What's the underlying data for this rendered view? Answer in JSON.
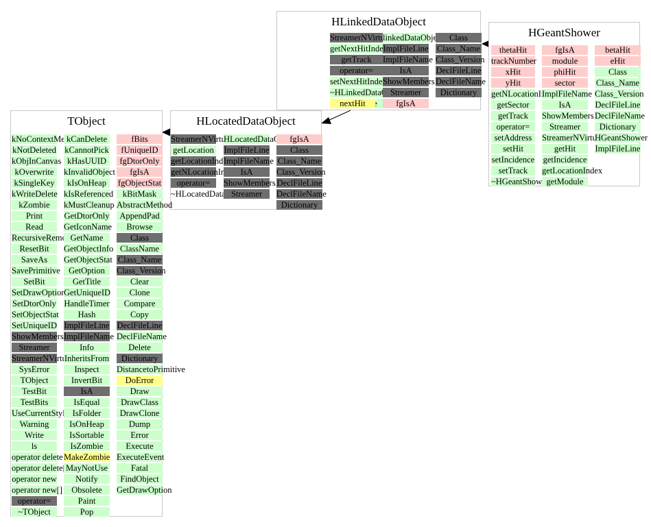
{
  "classes": {
    "hlinked": {
      "title": "HLinkedDataObject",
      "columns": [
        [
          {
            "t": "StreamerNVirtual",
            "c": "gray"
          },
          {
            "t": "getNextHitIndex",
            "c": "green"
          },
          {
            "t": "getTrack",
            "c": "gray"
          },
          {
            "t": "operator=",
            "c": "gray"
          },
          {
            "t": "setNextHitIndex",
            "c": "green"
          },
          {
            "t": "~HLinkedDataObject",
            "c": "green"
          },
          {
            "t": "sortVariable",
            "c": "green"
          }
        ],
        [
          {
            "t": "linkedDataObject",
            "c": "green"
          },
          {
            "t": "ImplFileLine",
            "c": "gray"
          },
          {
            "t": "ImplFileName",
            "c": "gray"
          },
          {
            "t": "IsA",
            "c": "gray"
          },
          {
            "t": "ShowMembers",
            "c": "gray"
          },
          {
            "t": "Streamer",
            "c": "gray"
          },
          {
            "t": "fgIsA",
            "c": "pink"
          }
        ],
        [
          {
            "t": "Class",
            "c": "gray"
          },
          {
            "t": "Class_Name",
            "c": "gray"
          },
          {
            "t": "Class_Version",
            "c": "gray"
          },
          {
            "t": "DeclFileLine",
            "c": "gray"
          },
          {
            "t": "DeclFileName",
            "c": "gray"
          },
          {
            "t": "Dictionary",
            "c": "gray"
          }
        ],
        [
          {
            "t": "nextHit",
            "c": "yellow"
          }
        ]
      ]
    },
    "hgeant": {
      "title": "HGeantShower",
      "columns": [
        [
          {
            "t": "thetaHit",
            "c": "pink"
          },
          {
            "t": "trackNumber",
            "c": "pink"
          },
          {
            "t": "xHit",
            "c": "pink"
          },
          {
            "t": "yHit",
            "c": "pink"
          },
          {
            "t": "getNLocationIndex",
            "c": "green"
          },
          {
            "t": "getSector",
            "c": "green"
          },
          {
            "t": "getTrack",
            "c": "green"
          },
          {
            "t": "operator=",
            "c": "green"
          },
          {
            "t": "setAddress",
            "c": "green"
          },
          {
            "t": "setHit",
            "c": "green"
          },
          {
            "t": "setIncidence",
            "c": "green"
          },
          {
            "t": "setTrack",
            "c": "green"
          },
          {
            "t": "~HGeantShower",
            "c": "green"
          }
        ],
        [
          {
            "t": "fgIsA",
            "c": "pink"
          },
          {
            "t": "module",
            "c": "pink"
          },
          {
            "t": "phiHit",
            "c": "pink"
          },
          {
            "t": "sector",
            "c": "pink"
          },
          {
            "t": "ImplFileName",
            "c": "green"
          },
          {
            "t": "IsA",
            "c": "green"
          },
          {
            "t": "ShowMembers",
            "c": "green"
          },
          {
            "t": "Streamer",
            "c": "green"
          },
          {
            "t": "StreamerNVirtual",
            "c": "green"
          },
          {
            "t": "getHit",
            "c": "green"
          },
          {
            "t": "getIncidence",
            "c": "green"
          },
          {
            "t": "getLocationIndex",
            "c": "green"
          },
          {
            "t": "getModule",
            "c": "green"
          }
        ],
        [
          {
            "t": "betaHit",
            "c": "pink"
          },
          {
            "t": "eHit",
            "c": "pink"
          },
          {
            "t": "Class",
            "c": "green"
          },
          {
            "t": "Class_Name",
            "c": "green"
          },
          {
            "t": "Class_Version",
            "c": "green"
          },
          {
            "t": "DeclFileLine",
            "c": "green"
          },
          {
            "t": "DeclFileName",
            "c": "green"
          },
          {
            "t": "Dictionary",
            "c": "green"
          },
          {
            "t": "HGeantShower",
            "c": "green"
          },
          {
            "t": "ImplFileLine",
            "c": "green"
          }
        ]
      ]
    },
    "hlocated": {
      "title": "HLocatedDataObject",
      "columns": [
        [
          {
            "t": "StreamerNVirtual",
            "c": "gray"
          },
          {
            "t": "getLocation",
            "c": "green"
          },
          {
            "t": "getLocationIndex",
            "c": "gray"
          },
          {
            "t": "getNLocationIndex",
            "c": "gray"
          },
          {
            "t": "operator=",
            "c": "gray"
          },
          {
            "t": "~HLocatedDataObject",
            "c": "white"
          }
        ],
        [
          {
            "t": "HLocatedDataObject",
            "c": "green"
          },
          {
            "t": "ImplFileLine",
            "c": "gray"
          },
          {
            "t": "ImplFileName",
            "c": "gray"
          },
          {
            "t": "IsA",
            "c": "gray"
          },
          {
            "t": "ShowMembers",
            "c": "gray"
          },
          {
            "t": "Streamer",
            "c": "gray"
          }
        ],
        [
          {
            "t": "fgIsA",
            "c": "pink"
          },
          {
            "t": "Class",
            "c": "gray"
          },
          {
            "t": "Class_Name",
            "c": "gray"
          },
          {
            "t": "Class_Version",
            "c": "gray"
          },
          {
            "t": "DeclFileLine",
            "c": "gray"
          },
          {
            "t": "DeclFileName",
            "c": "gray"
          },
          {
            "t": "Dictionary",
            "c": "gray"
          }
        ]
      ]
    },
    "tobject": {
      "title": "TObject",
      "columns": [
        [
          {
            "t": "kNoContextMenu",
            "c": "green"
          },
          {
            "t": "kNotDeleted",
            "c": "green"
          },
          {
            "t": "kObjInCanvas",
            "c": "green"
          },
          {
            "t": "kOverwrite",
            "c": "green"
          },
          {
            "t": "kSingleKey",
            "c": "green"
          },
          {
            "t": "kWriteDelete",
            "c": "green"
          },
          {
            "t": "kZombie",
            "c": "green"
          },
          {
            "t": "Print",
            "c": "green"
          },
          {
            "t": "Read",
            "c": "green"
          },
          {
            "t": "RecursiveRemove",
            "c": "green"
          },
          {
            "t": "ResetBit",
            "c": "green"
          },
          {
            "t": "SaveAs",
            "c": "green"
          },
          {
            "t": "SavePrimitive",
            "c": "green"
          },
          {
            "t": "SetBit",
            "c": "green"
          },
          {
            "t": "SetDrawOption",
            "c": "green"
          },
          {
            "t": "SetDtorOnly",
            "c": "green"
          },
          {
            "t": "SetObjectStat",
            "c": "green"
          },
          {
            "t": "SetUniqueID",
            "c": "green"
          },
          {
            "t": "ShowMembers",
            "c": "gray"
          },
          {
            "t": "Streamer",
            "c": "gray"
          },
          {
            "t": "StreamerNVirtual",
            "c": "gray"
          },
          {
            "t": "SysError",
            "c": "green"
          },
          {
            "t": "TObject",
            "c": "green"
          },
          {
            "t": "TestBit",
            "c": "green"
          },
          {
            "t": "TestBits",
            "c": "green"
          },
          {
            "t": "UseCurrentStyle",
            "c": "green"
          },
          {
            "t": "Warning",
            "c": "green"
          },
          {
            "t": "Write",
            "c": "green"
          },
          {
            "t": "ls",
            "c": "green"
          },
          {
            "t": "operator delete",
            "c": "green"
          },
          {
            "t": "operator delete[]",
            "c": "green"
          },
          {
            "t": "operator new",
            "c": "green"
          },
          {
            "t": "operator new[]",
            "c": "green"
          },
          {
            "t": "operator=",
            "c": "gray"
          },
          {
            "t": "~TObject",
            "c": "green"
          }
        ],
        [
          {
            "t": "kCanDelete",
            "c": "green"
          },
          {
            "t": "kCannotPick",
            "c": "green"
          },
          {
            "t": "kHasUUID",
            "c": "green"
          },
          {
            "t": "kInvalidObject",
            "c": "green"
          },
          {
            "t": "kIsOnHeap",
            "c": "green"
          },
          {
            "t": "kIsReferenced",
            "c": "green"
          },
          {
            "t": "kMustCleanup",
            "c": "green"
          },
          {
            "t": "GetDtorOnly",
            "c": "green"
          },
          {
            "t": "GetIconName",
            "c": "green"
          },
          {
            "t": "GetName",
            "c": "green"
          },
          {
            "t": "GetObjectInfo",
            "c": "green"
          },
          {
            "t": "GetObjectStat",
            "c": "green"
          },
          {
            "t": "GetOption",
            "c": "green"
          },
          {
            "t": "GetTitle",
            "c": "green"
          },
          {
            "t": "GetUniqueID",
            "c": "green"
          },
          {
            "t": "HandleTimer",
            "c": "green"
          },
          {
            "t": "Hash",
            "c": "green"
          },
          {
            "t": "ImplFileLine",
            "c": "gray"
          },
          {
            "t": "ImplFileName",
            "c": "gray"
          },
          {
            "t": "Info",
            "c": "green"
          },
          {
            "t": "InheritsFrom",
            "c": "green"
          },
          {
            "t": "Inspect",
            "c": "green"
          },
          {
            "t": "InvertBit",
            "c": "green"
          },
          {
            "t": "IsA",
            "c": "gray"
          },
          {
            "t": "IsEqual",
            "c": "green"
          },
          {
            "t": "IsFolder",
            "c": "green"
          },
          {
            "t": "IsOnHeap",
            "c": "green"
          },
          {
            "t": "IsSortable",
            "c": "green"
          },
          {
            "t": "IsZombie",
            "c": "green"
          },
          {
            "t": "MakeZombie",
            "c": "yellow"
          },
          {
            "t": "MayNotUse",
            "c": "green"
          },
          {
            "t": "Notify",
            "c": "green"
          },
          {
            "t": "Obsolete",
            "c": "green"
          },
          {
            "t": "Paint",
            "c": "green"
          },
          {
            "t": "Pop",
            "c": "green"
          }
        ],
        [
          {
            "t": "fBits",
            "c": "pink"
          },
          {
            "t": "fUniqueID",
            "c": "pink"
          },
          {
            "t": "fgDtorOnly",
            "c": "pink"
          },
          {
            "t": "fgIsA",
            "c": "pink"
          },
          {
            "t": "fgObjectStat",
            "c": "pink"
          },
          {
            "t": "kBitMask",
            "c": "green"
          },
          {
            "t": "AbstractMethod",
            "c": "green"
          },
          {
            "t": "AppendPad",
            "c": "green"
          },
          {
            "t": "Browse",
            "c": "green"
          },
          {
            "t": "Class",
            "c": "gray"
          },
          {
            "t": "ClassName",
            "c": "green"
          },
          {
            "t": "Class_Name",
            "c": "gray"
          },
          {
            "t": "Class_Version",
            "c": "gray"
          },
          {
            "t": "Clear",
            "c": "green"
          },
          {
            "t": "Clone",
            "c": "green"
          },
          {
            "t": "Compare",
            "c": "green"
          },
          {
            "t": "Copy",
            "c": "green"
          },
          {
            "t": "DeclFileLine",
            "c": "gray"
          },
          {
            "t": "DeclFileName",
            "c": "green"
          },
          {
            "t": "Delete",
            "c": "green"
          },
          {
            "t": "Dictionary",
            "c": "gray"
          },
          {
            "t": "DistancetoPrimitive",
            "c": "green"
          },
          {
            "t": "DoError",
            "c": "yellow"
          },
          {
            "t": "Draw",
            "c": "green"
          },
          {
            "t": "DrawClass",
            "c": "green"
          },
          {
            "t": "DrawClone",
            "c": "green"
          },
          {
            "t": "Dump",
            "c": "green"
          },
          {
            "t": "Error",
            "c": "green"
          },
          {
            "t": "Execute",
            "c": "green"
          },
          {
            "t": "ExecuteEvent",
            "c": "green"
          },
          {
            "t": "Fatal",
            "c": "green"
          },
          {
            "t": "FindObject",
            "c": "green"
          },
          {
            "t": "GetDrawOption",
            "c": "green"
          }
        ]
      ]
    }
  }
}
